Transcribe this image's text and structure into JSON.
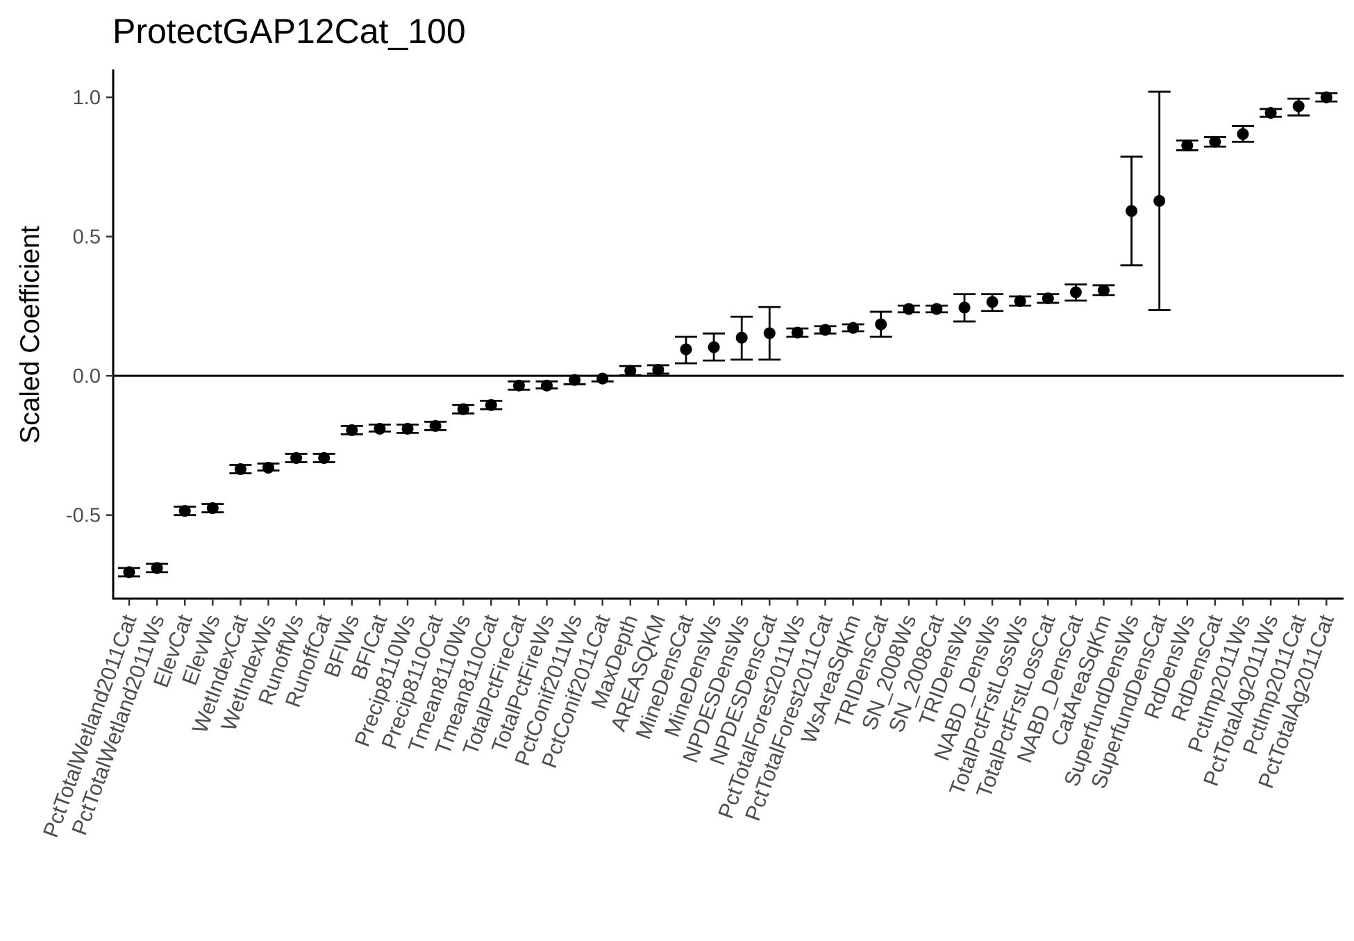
{
  "chart_data": {
    "type": "scatter",
    "subtype": "point-range (coefficient with error bars)",
    "title": "ProtectGAP12Cat_100",
    "xlabel": "",
    "ylabel": "Scaled Coefficient",
    "ylim": [
      -0.8,
      1.1
    ],
    "yticks": [
      -0.5,
      0.0,
      0.5,
      1.0
    ],
    "ytick_labels": [
      "-0.5",
      "0.0",
      "0.5",
      "1.0"
    ],
    "reference_line_y": 0.0,
    "grid": false,
    "legend": "none",
    "colors": {
      "points": "#000000",
      "errorbars": "#000000",
      "tick_text": "#4d4d4d",
      "background": "#ffffff"
    },
    "categories": [
      "PctTotalWetland2011Cat",
      "PctTotalWetland2011Ws",
      "ElevCat",
      "ElevWs",
      "WetIndexCat",
      "WetIndexWs",
      "RunoffWs",
      "RunoffCat",
      "BFIWs",
      "BFICat",
      "Precip8110Ws",
      "Precip8110Cat",
      "Tmean8110Ws",
      "Tmean8110Cat",
      "TotalPctFireCat",
      "TotalPctFireWs",
      "PctConif2011Ws",
      "PctConif2011Cat",
      "MaxDepth",
      "AREASQKM",
      "MineDensCat",
      "MineDensWs",
      "NPDESDensWs",
      "NPDESDensCat",
      "PctTotalForest2011Ws",
      "PctTotalForest2011Cat",
      "WsAreaSqKm",
      "TRIDensCat",
      "SN_2008Ws",
      "SN_2008Cat",
      "TRIDensWs",
      "NABD_DensWs",
      "TotalPctFrstLossWs",
      "TotalPctFrstLossCat",
      "NABD_DensCat",
      "CatAreaSqKm",
      "SuperfundDensWs",
      "SuperfundDensCat",
      "RdDensWs",
      "RdDensCat",
      "PctImp2011Ws",
      "PctTotalAg2011Ws",
      "PctImp2011Cat",
      "PctTotalAg2011Cat"
    ],
    "values": [
      -0.705,
      -0.69,
      -0.485,
      -0.475,
      -0.335,
      -0.33,
      -0.295,
      -0.295,
      -0.195,
      -0.19,
      -0.19,
      -0.18,
      -0.12,
      -0.105,
      -0.035,
      -0.035,
      -0.015,
      -0.01,
      0.018,
      0.022,
      0.095,
      0.103,
      0.137,
      0.153,
      0.155,
      0.165,
      0.172,
      0.185,
      0.24,
      0.24,
      0.245,
      0.265,
      0.268,
      0.278,
      0.3,
      0.307,
      0.592,
      0.628,
      0.827,
      0.84,
      0.868,
      0.944,
      0.968,
      1.0
    ],
    "lower": [
      -0.72,
      -0.705,
      -0.5,
      -0.49,
      -0.35,
      -0.34,
      -0.31,
      -0.31,
      -0.21,
      -0.2,
      -0.205,
      -0.195,
      -0.135,
      -0.12,
      -0.05,
      -0.045,
      -0.03,
      -0.02,
      0.002,
      0.008,
      0.045,
      0.055,
      0.058,
      0.058,
      0.14,
      0.152,
      0.16,
      0.14,
      0.228,
      0.228,
      0.195,
      0.233,
      0.252,
      0.262,
      0.27,
      0.29,
      0.397,
      0.236,
      0.81,
      0.823,
      0.84,
      0.93,
      0.935,
      0.985
    ],
    "upper": [
      -0.69,
      -0.675,
      -0.47,
      -0.46,
      -0.32,
      -0.315,
      -0.28,
      -0.28,
      -0.18,
      -0.175,
      -0.175,
      -0.165,
      -0.105,
      -0.09,
      -0.02,
      -0.02,
      0.0,
      0.0,
      0.035,
      0.038,
      0.14,
      0.152,
      0.212,
      0.247,
      0.17,
      0.178,
      0.185,
      0.23,
      0.252,
      0.252,
      0.293,
      0.293,
      0.285,
      0.293,
      0.328,
      0.325,
      0.787,
      1.02,
      0.845,
      0.857,
      0.897,
      0.958,
      0.995,
      1.015
    ]
  }
}
